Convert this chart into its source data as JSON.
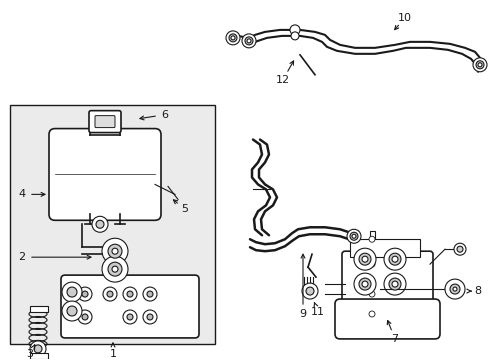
{
  "background_color": "#ffffff",
  "fig_width": 4.89,
  "fig_height": 3.6,
  "dpi": 100,
  "line_color": "#1a1a1a",
  "box_fill": "#ebebeb",
  "white": "#ffffff",
  "gray": "#cccccc",
  "darkgray": "#888888"
}
